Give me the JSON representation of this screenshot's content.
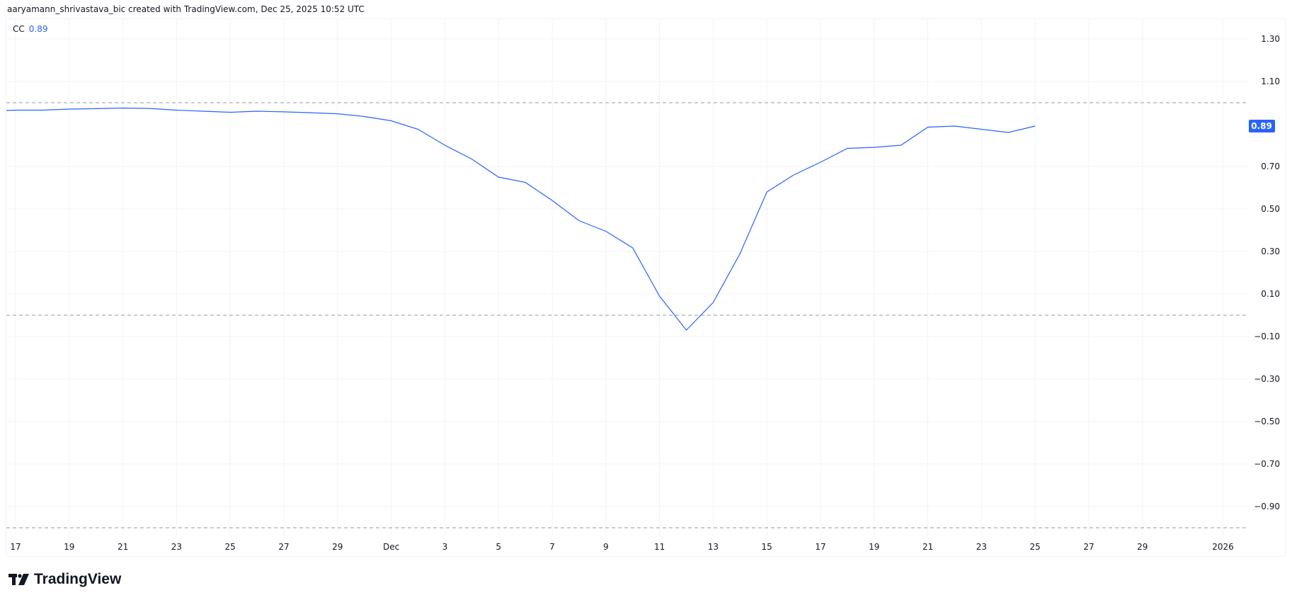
{
  "header": {
    "attribution": "aaryamann_shrivastava_bic created with TradingView.com, Dec 25, 2025 10:52 UTC"
  },
  "legend": {
    "symbol": "CC",
    "value": "0.89"
  },
  "logo": {
    "text": "TradingView"
  },
  "colors": {
    "line": "#2962ff",
    "grid": "#f0f3fa",
    "level": "#9598a1",
    "label_bg": "#2962ff"
  },
  "chart_data": {
    "type": "line",
    "title": "",
    "xlabel": "",
    "ylabel": "",
    "x_ticks": [
      "17",
      "19",
      "21",
      "23",
      "25",
      "27",
      "29",
      "Dec",
      "3",
      "5",
      "7",
      "9",
      "11",
      "13",
      "15",
      "17",
      "19",
      "21",
      "23",
      "25",
      "27",
      "29",
      "2026"
    ],
    "y_ticks": [
      "1.30",
      "1.10",
      "0.70",
      "0.50",
      "0.30",
      "0.10",
      "-0.10",
      "-0.30",
      "-0.50",
      "-0.70",
      "-0.90"
    ],
    "ylim": [
      -1.05,
      1.35
    ],
    "xlim": [
      "2025-11-16",
      "2026-01-02"
    ],
    "grid": true,
    "reference_levels": [
      1,
      0,
      -1
    ],
    "last_value_label": "0.89",
    "series": [
      {
        "x": [
          "2025-11-16",
          "2025-11-17",
          "2025-11-18",
          "2025-11-19",
          "2025-11-20",
          "2025-11-21",
          "2025-11-22",
          "2025-11-23",
          "2025-11-24",
          "2025-11-25",
          "2025-11-26",
          "2025-11-27",
          "2025-11-28",
          "2025-11-29",
          "2025-11-30",
          "2025-12-01",
          "2025-12-02",
          "2025-12-03",
          "2025-12-04",
          "2025-12-05",
          "2025-12-06",
          "2025-12-07",
          "2025-12-08",
          "2025-12-09",
          "2025-12-10",
          "2025-12-11",
          "2025-12-12",
          "2025-12-13",
          "2025-12-14",
          "2025-12-15",
          "2025-12-16",
          "2025-12-17",
          "2025-12-18",
          "2025-12-19",
          "2025-12-20",
          "2025-12-21",
          "2025-12-22",
          "2025-12-23",
          "2025-12-24",
          "2025-12-25"
        ],
        "values": [
          0.96,
          0.965,
          0.965,
          0.97,
          0.972,
          0.975,
          0.973,
          0.965,
          0.96,
          0.955,
          0.96,
          0.957,
          0.953,
          0.948,
          0.935,
          0.915,
          0.875,
          0.8,
          0.735,
          0.65,
          0.625,
          0.54,
          0.445,
          0.395,
          0.317,
          0.09,
          -0.07,
          0.06,
          0.29,
          0.58,
          0.66,
          0.72,
          0.785,
          0.79,
          0.8,
          0.885,
          0.89,
          0.875,
          0.86,
          0.89
        ]
      }
    ]
  }
}
